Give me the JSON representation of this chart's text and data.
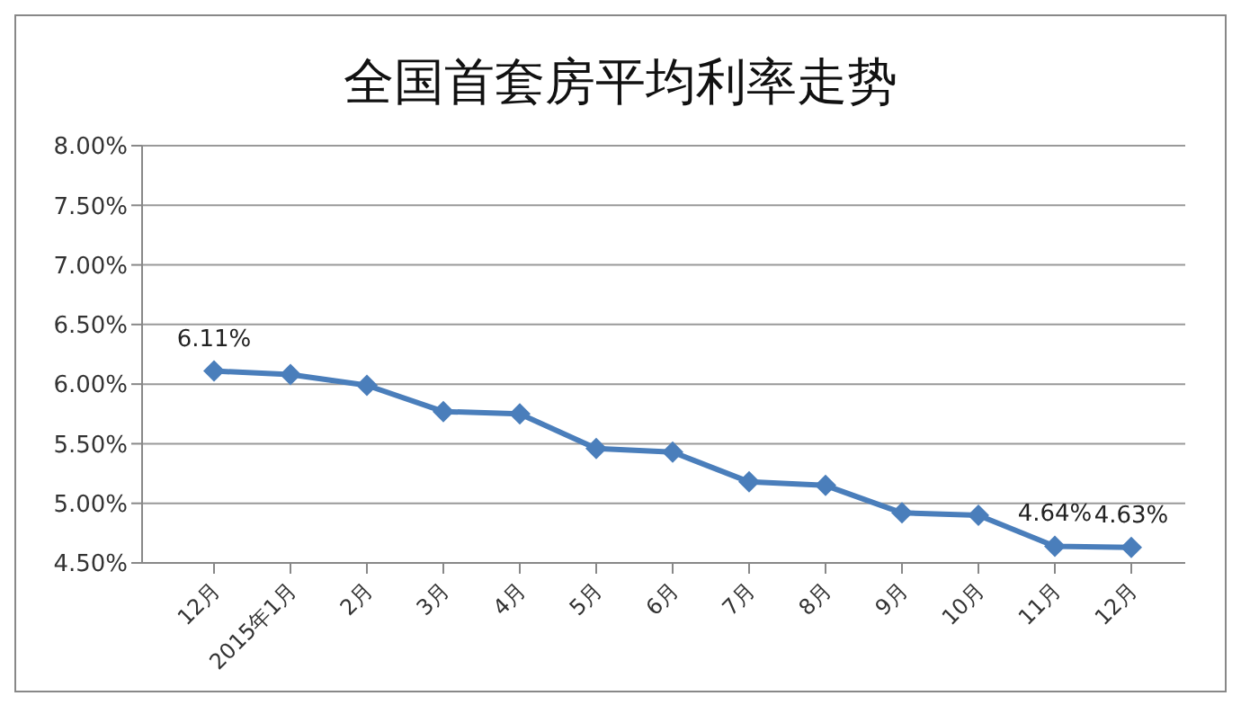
{
  "chart_data": {
    "type": "line",
    "title": "全国首套房平均利率走势",
    "categories": [
      "12月",
      "2015年1月",
      "2月",
      "3月",
      "4月",
      "5月",
      "6月",
      "7月",
      "8月",
      "9月",
      "10月",
      "11月",
      "12月"
    ],
    "series": [
      {
        "color": "#4a7ebb",
        "values": [
          6.11,
          6.08,
          5.99,
          5.77,
          5.75,
          5.46,
          5.43,
          5.18,
          5.15,
          4.92,
          4.9,
          4.64,
          4.63
        ],
        "value_labels": [
          "6.11%",
          null,
          null,
          null,
          null,
          null,
          null,
          null,
          null,
          null,
          null,
          "4.64%",
          "4.63%"
        ]
      }
    ],
    "ylim": [
      4.5,
      8
    ],
    "yticks": [
      {
        "value": 4.5,
        "label": "4.50%"
      },
      {
        "value": 5,
        "label": "5.00%"
      },
      {
        "value": 5.5,
        "label": "5.50%"
      },
      {
        "value": 6,
        "label": "6.00%"
      },
      {
        "value": 6.5,
        "label": "6.50%"
      },
      {
        "value": 7,
        "label": "7.00%"
      },
      {
        "value": 7.5,
        "label": "7.50%"
      },
      {
        "value": 8,
        "label": "8.00%"
      }
    ],
    "grid": "y",
    "legend": false,
    "marker": "diamond",
    "line_style": "solid"
  }
}
